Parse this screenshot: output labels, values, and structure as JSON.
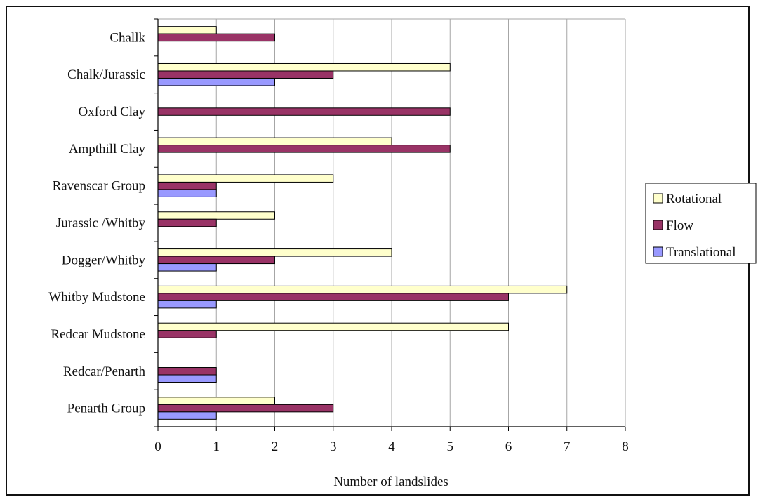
{
  "chart_data": {
    "type": "bar",
    "orientation": "horizontal",
    "categories": [
      "Challk",
      "Chalk/Jurassic",
      "Oxford Clay",
      "Ampthill Clay",
      "Ravenscar Group",
      "Jurassic /Whitby",
      "Dogger/Whitby",
      "Whitby Mudstone",
      "Redcar Mudstone",
      "Redcar/Penarth",
      "Penarth Group"
    ],
    "series": [
      {
        "name": "Rotational",
        "color": "#ffffcc",
        "values": [
          1,
          5,
          0,
          4,
          3,
          2,
          4,
          7,
          6,
          0,
          2
        ]
      },
      {
        "name": "Flow",
        "color": "#993366",
        "values": [
          2,
          3,
          5,
          5,
          1,
          1,
          2,
          6,
          1,
          1,
          3
        ]
      },
      {
        "name": "Translational",
        "color": "#9999ff",
        "values": [
          0,
          2,
          0,
          0,
          1,
          0,
          1,
          1,
          0,
          1,
          1
        ]
      }
    ],
    "xlabel": "Number of landslides",
    "xlim": [
      0,
      8
    ],
    "xticks": [
      "0",
      "1",
      "2",
      "3",
      "4",
      "5",
      "6",
      "7",
      "8"
    ],
    "grid": "vertical",
    "legend_position": "right"
  }
}
